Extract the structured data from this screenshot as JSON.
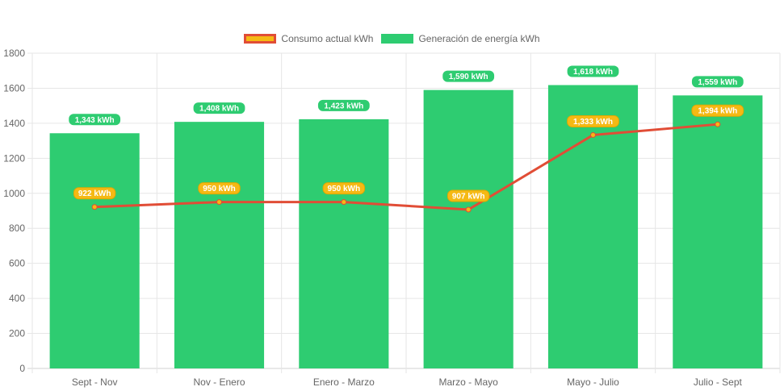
{
  "chart_data": {
    "type": "bar",
    "categories": [
      "Sept - Nov",
      "Nov - Enero",
      "Enero - Marzo",
      "Marzo - Mayo",
      "Mayo - Julio",
      "Julio - Sept"
    ],
    "series": [
      {
        "name": "Consumo actual kWh",
        "type": "line",
        "values": [
          922,
          950,
          950,
          907,
          1333,
          1394
        ],
        "data_labels": [
          "922 kWh",
          "950 kWh",
          "950 kWh",
          "907 kWh",
          "1,333 kWh",
          "1,394 kWh"
        ],
        "color": "#e14d36",
        "label_fill": "#f5b914"
      },
      {
        "name": "Generación de energía kWh",
        "type": "bar",
        "values": [
          1343,
          1408,
          1423,
          1590,
          1618,
          1559
        ],
        "data_labels": [
          "1,343 kWh",
          "1,408 kWh",
          "1,423 kWh",
          "1,590 kWh",
          "1,618 kWh",
          "1,559 kWh"
        ],
        "color": "#2ecc71",
        "label_fill": "#2ecc71"
      }
    ],
    "ylim": [
      0,
      1800
    ],
    "yticks": [
      "0",
      "200",
      "400",
      "600",
      "800",
      "1000",
      "1200",
      "1400",
      "1600",
      "1800"
    ],
    "grid": true,
    "legend": "top-center"
  }
}
